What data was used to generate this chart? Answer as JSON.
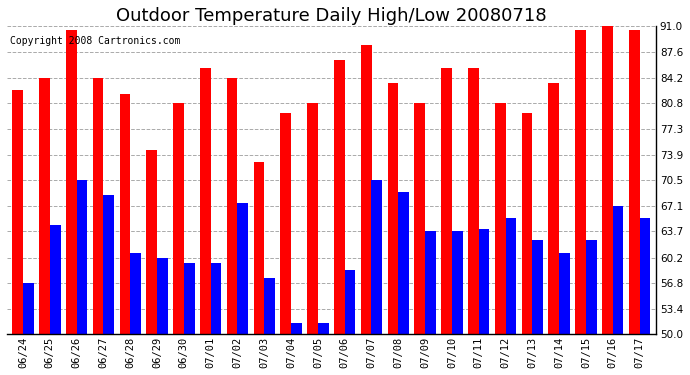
{
  "title": "Outdoor Temperature Daily High/Low 20080718",
  "copyright": "Copyright 2008 Cartronics.com",
  "dates": [
    "06/24",
    "06/25",
    "06/26",
    "06/27",
    "06/28",
    "06/29",
    "06/30",
    "07/01",
    "07/02",
    "07/03",
    "07/04",
    "07/05",
    "07/06",
    "07/07",
    "07/08",
    "07/09",
    "07/10",
    "07/11",
    "07/12",
    "07/13",
    "07/14",
    "07/15",
    "07/16",
    "07/17"
  ],
  "highs": [
    82.5,
    84.2,
    90.5,
    84.2,
    82.0,
    74.5,
    80.8,
    85.5,
    84.2,
    73.0,
    79.5,
    80.8,
    86.5,
    88.5,
    83.5,
    80.8,
    85.5,
    85.5,
    80.8,
    79.5,
    83.5,
    90.5,
    91.0,
    90.5
  ],
  "lows": [
    56.8,
    64.5,
    70.5,
    68.5,
    60.8,
    60.2,
    59.5,
    59.5,
    67.5,
    57.5,
    51.5,
    51.5,
    58.5,
    70.5,
    69.0,
    63.7,
    63.7,
    64.0,
    65.5,
    62.5,
    60.8,
    62.5,
    67.1,
    65.5
  ],
  "high_color": "#ff0000",
  "low_color": "#0000ff",
  "bg_color": "#ffffff",
  "plot_bg_color": "#ffffff",
  "ymin": 50.0,
  "ymax": 91.0,
  "yticks": [
    50.0,
    53.4,
    56.8,
    60.2,
    63.7,
    67.1,
    70.5,
    73.9,
    77.3,
    80.8,
    84.2,
    87.6,
    91.0
  ],
  "grid_color": "#aaaaaa",
  "bar_width": 0.4,
  "title_fontsize": 13,
  "tick_fontsize": 7.5,
  "copyright_fontsize": 7
}
